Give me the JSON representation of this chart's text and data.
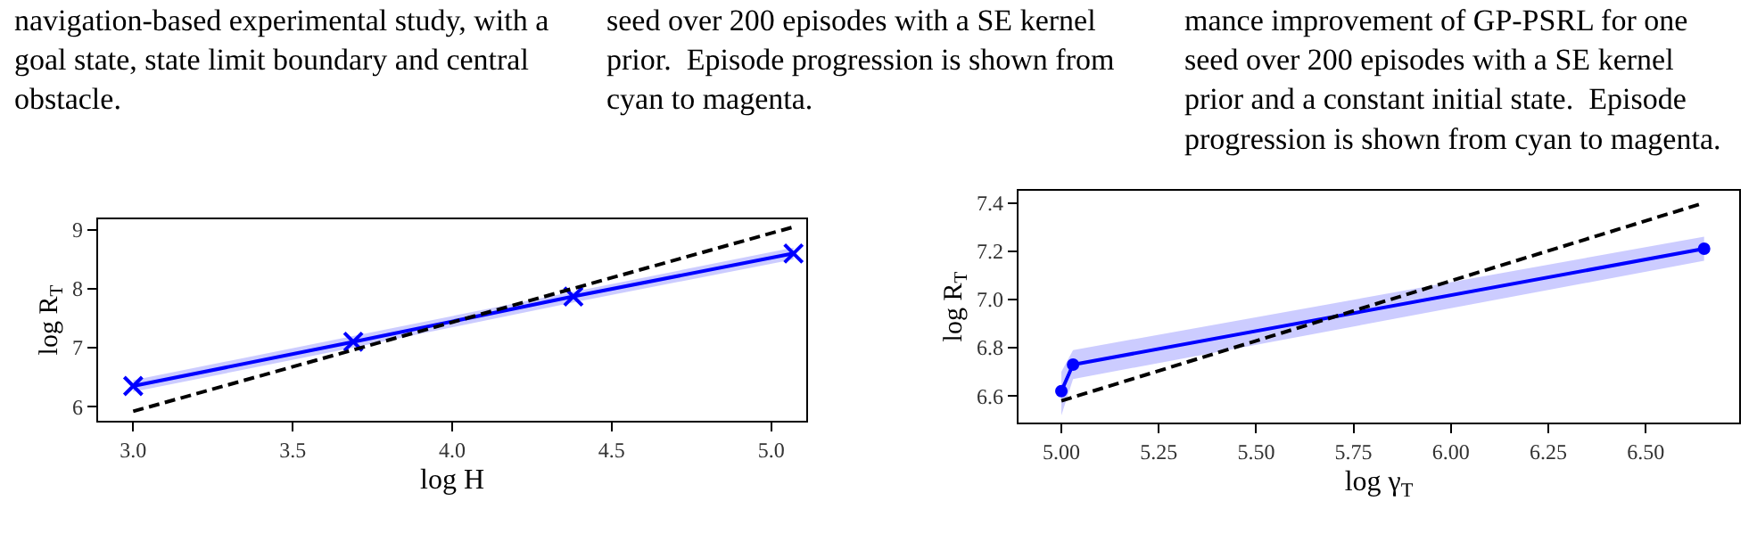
{
  "chart_data": [
    {
      "type": "other",
      "annotations": [
        "navigation-based experimental study, with a\ngoal state, state limit boundary and central\nobstacle.",
        "seed over 200 episodes with a SE kernel\nprior.  Episode progression is shown from\ncyan to magenta.",
        "mance improvement of GP-PSRL for one\nseed over 200 episodes with a SE kernel\nprior and a constant initial state.  Episode\nprogression is shown from cyan to magenta."
      ]
    },
    {
      "type": "line",
      "xlabel": "log H",
      "ylabel": "log R$_{T}$",
      "xlim": [
        2.89,
        5.11
      ],
      "ylim": [
        5.76,
        9.18
      ],
      "xticks": [
        {
          "value": 3.0,
          "label": "3.0"
        },
        3.5,
        {
          "value": 4.0,
          "label": "4.0"
        },
        4.5,
        {
          "value": 5.0,
          "label": "5.0"
        }
      ],
      "yticks": [
        6,
        7,
        8,
        9
      ],
      "series": [
        {
          "color": "#0000ff",
          "x": [
            3.0,
            3.69,
            4.38,
            5.07
          ],
          "values": [
            6.35,
            7.1,
            7.87,
            8.6
          ],
          "lower": [
            6.25,
            7.0,
            7.77,
            8.5
          ],
          "upper": [
            6.45,
            7.2,
            7.97,
            8.7
          ],
          "marker": "cross",
          "line_style": "solid"
        },
        {
          "color": "#000000",
          "x": [
            3.0,
            5.07
          ],
          "values": [
            5.92,
            9.05
          ],
          "marker": "none",
          "line_style": "dashed"
        }
      ]
    },
    {
      "type": "line",
      "xlabel": "log γ$_{T}$",
      "ylabel": "log R$_{T}$",
      "xlim": [
        4.89,
        6.74
      ],
      "ylim": [
        6.49,
        7.45
      ],
      "xticks": [
        {
          "value": 5.0,
          "label": "5.00"
        },
        5.25,
        {
          "value": 5.5,
          "label": "5.50"
        },
        5.75,
        {
          "value": 6.0,
          "label": "6.00"
        },
        6.25,
        {
          "value": 6.5,
          "label": "6.50"
        }
      ],
      "yticks": [
        {
          "value": 6.6,
          "label": "6.6"
        },
        {
          "value": 6.8,
          "label": "6.8"
        },
        {
          "value": 7.0,
          "label": "7.0"
        },
        {
          "value": 7.2,
          "label": "7.2"
        },
        {
          "value": 7.4,
          "label": "7.4"
        }
      ],
      "series": [
        {
          "color": "#0000ff",
          "x": [
            5.0,
            5.03,
            6.65
          ],
          "values": [
            6.62,
            6.73,
            7.21
          ],
          "lower": [
            6.52,
            6.67,
            7.16
          ],
          "upper": [
            6.7,
            6.79,
            7.26
          ],
          "marker": "circle",
          "line_style": "solid"
        },
        {
          "color": "#000000",
          "x": [
            5.0,
            6.65
          ],
          "values": [
            6.58,
            7.4
          ],
          "marker": "none",
          "line_style": "dashed"
        }
      ]
    }
  ]
}
